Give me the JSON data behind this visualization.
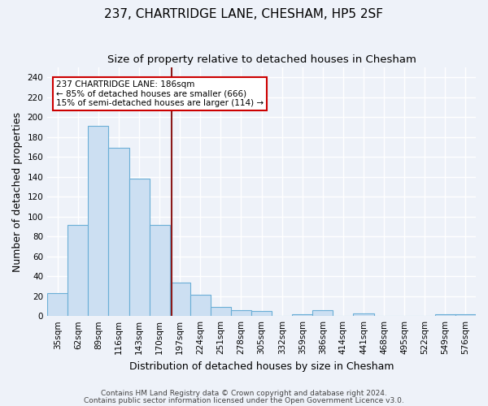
{
  "title": "237, CHARTRIDGE LANE, CHESHAM, HP5 2SF",
  "subtitle": "Size of property relative to detached houses in Chesham",
  "xlabel": "Distribution of detached houses by size in Chesham",
  "ylabel": "Number of detached properties",
  "categories": [
    "35sqm",
    "62sqm",
    "89sqm",
    "116sqm",
    "143sqm",
    "170sqm",
    "197sqm",
    "224sqm",
    "251sqm",
    "278sqm",
    "305sqm",
    "332sqm",
    "359sqm",
    "386sqm",
    "414sqm",
    "441sqm",
    "468sqm",
    "495sqm",
    "522sqm",
    "549sqm",
    "576sqm"
  ],
  "values": [
    23,
    92,
    191,
    169,
    138,
    92,
    34,
    21,
    9,
    6,
    5,
    0,
    2,
    6,
    0,
    3,
    0,
    0,
    0,
    2,
    2
  ],
  "bar_color": "#ccdff2",
  "bar_edge_color": "#6aaed6",
  "reference_line_color": "#8b1a1a",
  "annotation_text": "237 CHARTRIDGE LANE: 186sqm\n← 85% of detached houses are smaller (666)\n15% of semi-detached houses are larger (114) →",
  "annotation_box_color": "#ffffff",
  "annotation_box_edge_color": "#cc0000",
  "ylim": [
    0,
    250
  ],
  "yticks": [
    0,
    20,
    40,
    60,
    80,
    100,
    120,
    140,
    160,
    180,
    200,
    220,
    240
  ],
  "footnote_line1": "Contains HM Land Registry data © Crown copyright and database right 2024.",
  "footnote_line2": "Contains public sector information licensed under the Open Government Licence v3.0.",
  "background_color": "#eef2f9",
  "grid_color": "#ffffff",
  "title_fontsize": 11,
  "subtitle_fontsize": 9.5,
  "axis_label_fontsize": 9,
  "tick_fontsize": 7.5,
  "annotation_fontsize": 7.5,
  "footnote_fontsize": 6.5
}
